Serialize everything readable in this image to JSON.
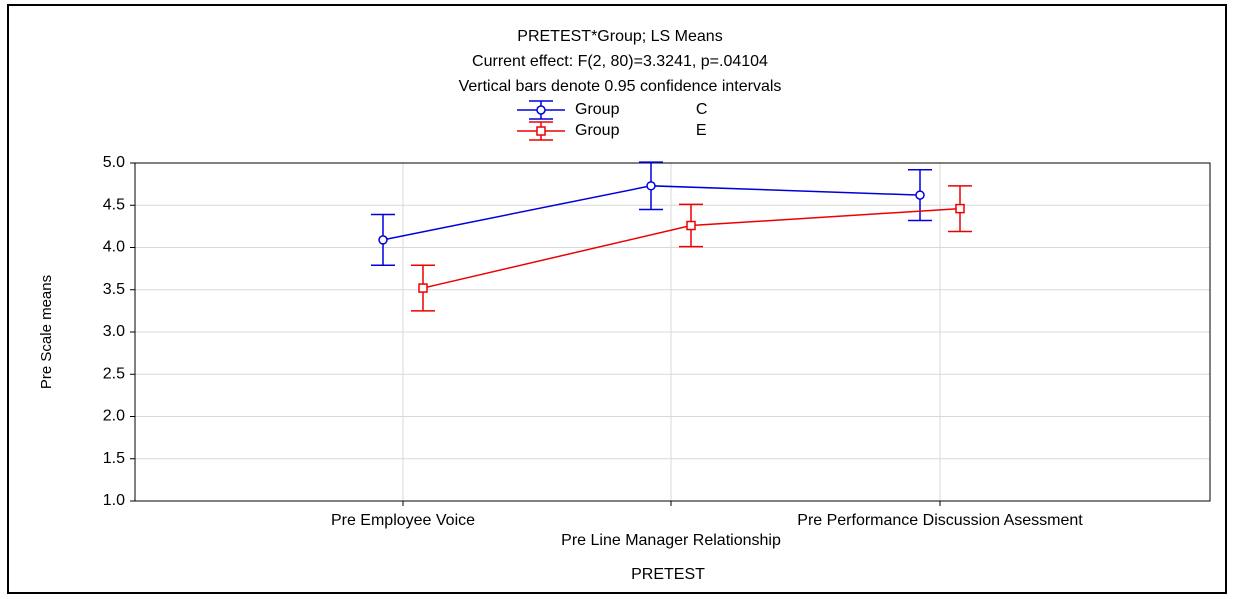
{
  "chart_data": {
    "type": "line",
    "title": "PRETEST*Group; LS Means",
    "subtitle": "Current effect: F(2, 80)=3.3241, p=.04104",
    "annotation": "Vertical bars denote 0.95 confidence intervals",
    "x_label": "PRETEST",
    "y_label": "Pre Scale means",
    "categories": [
      "Pre Employee Voice",
      "Pre Line Manager Relationship",
      "Pre Performance Discussion Asessment"
    ],
    "series": [
      {
        "name": "Group C",
        "color": "#0000dd",
        "marker": "circle",
        "values": [
          4.09,
          4.73,
          4.62
        ],
        "errors": [
          0.3,
          0.28,
          0.3
        ]
      },
      {
        "name": "Group E",
        "color": "#ee0000",
        "marker": "square",
        "values": [
          3.52,
          4.26,
          4.46
        ],
        "errors": [
          0.27,
          0.25,
          0.27
        ]
      }
    ],
    "ylim": [
      1,
      5
    ],
    "yticks": [
      {
        "value": 1,
        "label": "1.0"
      },
      1.5,
      {
        "value": 2,
        "label": "2.0"
      },
      2.5,
      {
        "value": 3,
        "label": "3.0"
      },
      3.5,
      {
        "value": 4,
        "label": "4.0"
      },
      4.5,
      {
        "value": 5,
        "label": "5.0"
      }
    ],
    "grid": true
  }
}
